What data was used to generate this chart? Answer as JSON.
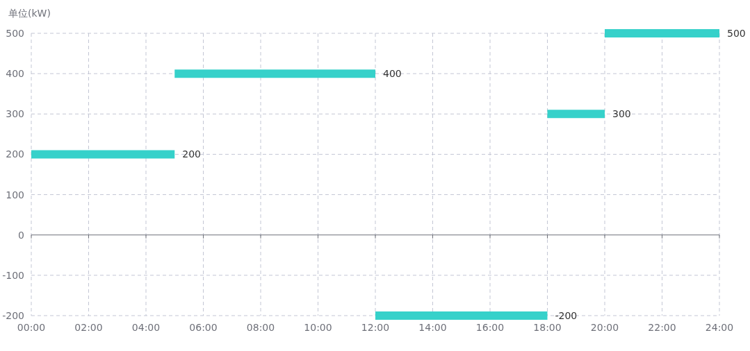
{
  "chart_data": {
    "type": "line",
    "ylabel": "单位(kW)",
    "xlim": [
      0,
      24
    ],
    "ylim": [
      -200,
      500
    ],
    "xticks": [
      {
        "value": 0,
        "label": "00:00"
      },
      {
        "value": 2,
        "label": "02:00"
      },
      {
        "value": 4,
        "label": "04:00"
      },
      {
        "value": 6,
        "label": "06:00"
      },
      {
        "value": 8,
        "label": "08:00"
      },
      {
        "value": 10,
        "label": "10:00"
      },
      {
        "value": 12,
        "label": "12:00"
      },
      {
        "value": 14,
        "label": "14:00"
      },
      {
        "value": 16,
        "label": "16:00"
      },
      {
        "value": 18,
        "label": "18:00"
      },
      {
        "value": 20,
        "label": "20:00"
      },
      {
        "value": 22,
        "label": "22:00"
      },
      {
        "value": 24,
        "label": "24:00"
      }
    ],
    "yticks": [
      -200,
      -100,
      0,
      100,
      200,
      300,
      400,
      500
    ],
    "grid": true,
    "series": [
      {
        "color": "#36d1ca",
        "x": [
          0,
          5
        ],
        "values": [
          200,
          200
        ],
        "value_labels": [
          null,
          "200"
        ]
      },
      {
        "color": "#36d1ca",
        "x": [
          5,
          12
        ],
        "values": [
          400,
          400
        ],
        "value_labels": [
          null,
          "400"
        ]
      },
      {
        "color": "#36d1ca",
        "x": [
          12,
          18
        ],
        "values": [
          -200,
          -200
        ],
        "value_labels": [
          null,
          "-200"
        ]
      },
      {
        "color": "#36d1ca",
        "x": [
          18,
          20
        ],
        "values": [
          300,
          300
        ],
        "value_labels": [
          null,
          "300"
        ]
      },
      {
        "color": "#36d1ca",
        "x": [
          20,
          24
        ],
        "values": [
          500,
          500
        ],
        "value_labels": [
          null,
          "500"
        ]
      }
    ]
  }
}
